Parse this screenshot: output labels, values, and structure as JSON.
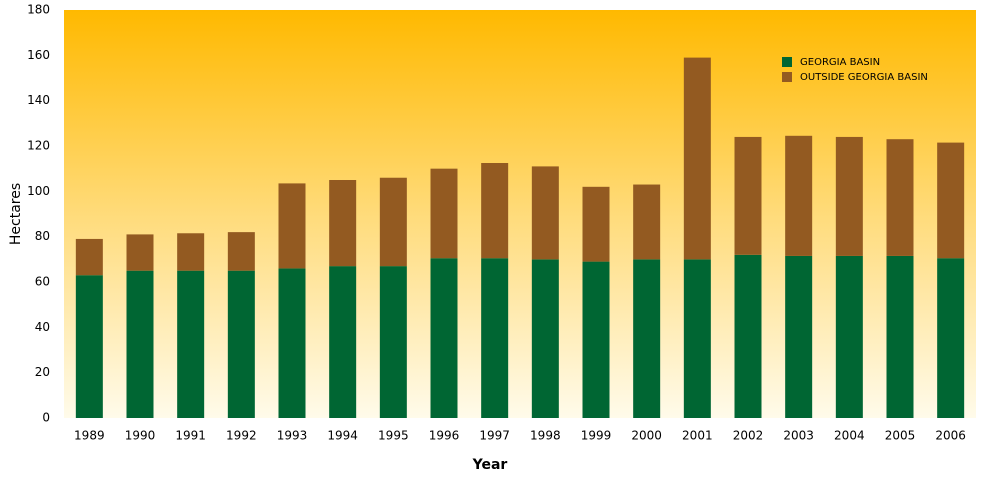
{
  "chart_data": {
    "type": "stacked_bar",
    "xlabel": "Year",
    "ylabel": "Hectares",
    "categories": [
      "1989",
      "1990",
      "1991",
      "1992",
      "1993",
      "1994",
      "1995",
      "1996",
      "1997",
      "1998",
      "1999",
      "2000",
      "2001",
      "2002",
      "2003",
      "2004",
      "2005",
      "2006"
    ],
    "series": [
      {
        "name": "GEORGIA BASIN",
        "color": "#006633",
        "values": [
          63,
          65,
          65,
          65,
          66,
          67,
          67,
          70.5,
          70.5,
          70,
          69,
          70,
          70,
          72,
          71.5,
          71.5,
          71.5,
          70.5
        ]
      },
      {
        "name": "OUTSIDE GEORGIA BASIN",
        "color": "#935a21",
        "values": [
          16,
          16,
          16.5,
          17,
          37.5,
          38,
          39,
          39.5,
          42,
          41,
          33,
          33,
          89,
          52,
          53,
          52.5,
          51.5,
          51
        ]
      }
    ],
    "ylim": [
      0,
      180
    ],
    "yticks": [
      0,
      20,
      40,
      60,
      80,
      100,
      120,
      140,
      160,
      180
    ],
    "legend": "upper right"
  }
}
